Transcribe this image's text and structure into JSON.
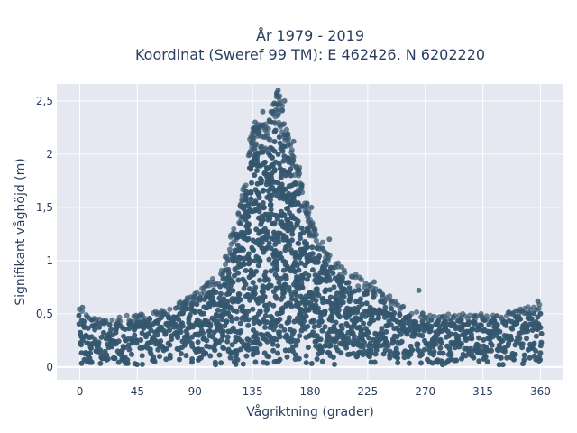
{
  "chart_data": {
    "type": "scatter",
    "title_lines": [
      "År 1979 - 2019",
      "Koordinat (Sweref 99 TM): E 462426, N 6202220"
    ],
    "xlabel": "Vågriktning (grader)",
    "ylabel": "Signifikant våghöjd (m)",
    "xlim": [
      -18,
      378
    ],
    "ylim": [
      -0.12,
      2.66
    ],
    "x_ticks": [
      0,
      45,
      90,
      135,
      180,
      225,
      270,
      315,
      360
    ],
    "x_tick_labels": [
      "0",
      "45",
      "90",
      "135",
      "180",
      "225",
      "270",
      "315",
      "360"
    ],
    "y_ticks": [
      0,
      0.5,
      1,
      1.5,
      2,
      2.5
    ],
    "y_tick_labels": [
      "0",
      "0,5",
      "1",
      "1,5",
      "2",
      "2,5"
    ],
    "marker_color": "#34566e",
    "background_color": "#e5e8f1",
    "grid": true,
    "envelope": {
      "x": [
        0,
        20,
        45,
        70,
        90,
        110,
        125,
        135,
        145,
        155,
        165,
        180,
        200,
        225,
        250,
        270,
        300,
        330,
        360
      ],
      "y_max": [
        0.55,
        0.45,
        0.5,
        0.55,
        0.7,
        0.9,
        1.5,
        2.3,
        2.3,
        2.6,
        2.2,
        1.4,
        1.0,
        0.8,
        0.6,
        0.5,
        0.5,
        0.5,
        0.6
      ]
    },
    "notable_points": [
      {
        "x": 155,
        "y": 2.6
      },
      {
        "x": 154,
        "y": 2.57
      },
      {
        "x": 152,
        "y": 2.48
      },
      {
        "x": 160,
        "y": 2.5
      },
      {
        "x": 143,
        "y": 2.4
      },
      {
        "x": 137,
        "y": 2.3
      },
      {
        "x": 135,
        "y": 2.2
      },
      {
        "x": 167,
        "y": 2.12
      },
      {
        "x": 181,
        "y": 1.5
      },
      {
        "x": 195,
        "y": 1.2
      },
      {
        "x": 230,
        "y": 0.8
      },
      {
        "x": 265,
        "y": 0.72
      },
      {
        "x": 2,
        "y": 0.56
      },
      {
        "x": 358,
        "y": 0.62
      },
      {
        "x": 84,
        "y": 0.65
      }
    ]
  }
}
